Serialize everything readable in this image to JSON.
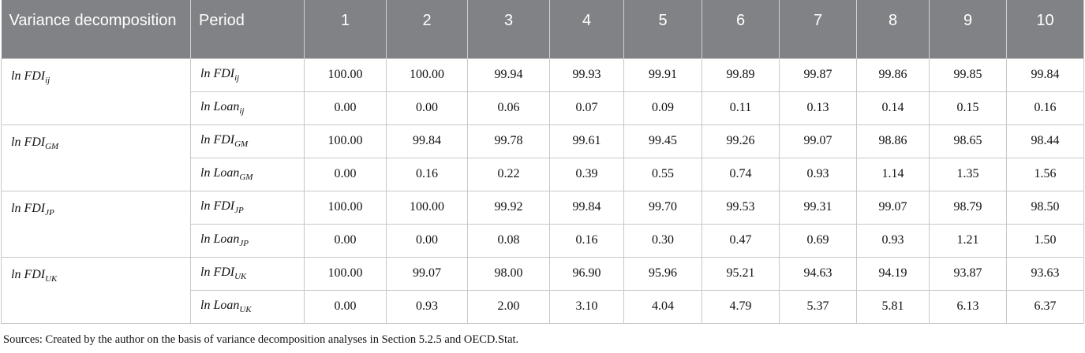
{
  "table": {
    "header": [
      "Variance decomposition",
      "Period",
      "1",
      "2",
      "3",
      "4",
      "5",
      "6",
      "7",
      "8",
      "9",
      "10"
    ],
    "groups": [
      {
        "label": {
          "base": "ln FDI",
          "sub": "ij"
        },
        "rows": [
          {
            "label": {
              "base": "ln FDI",
              "sub": "ij"
            },
            "values": [
              "100.00",
              "100.00",
              "99.94",
              "99.93",
              "99.91",
              "99.89",
              "99.87",
              "99.86",
              "99.85",
              "99.84"
            ]
          },
          {
            "label": {
              "base": "ln Loan",
              "sub": "ij"
            },
            "values": [
              "0.00",
              "0.00",
              "0.06",
              "0.07",
              "0.09",
              "0.11",
              "0.13",
              "0.14",
              "0.15",
              "0.16"
            ]
          }
        ]
      },
      {
        "label": {
          "base": "ln FDI",
          "sub": "GM"
        },
        "rows": [
          {
            "label": {
              "base": "ln FDI",
              "sub": "GM"
            },
            "values": [
              "100.00",
              "99.84",
              "99.78",
              "99.61",
              "99.45",
              "99.26",
              "99.07",
              "98.86",
              "98.65",
              "98.44"
            ]
          },
          {
            "label": {
              "base": "ln Loan",
              "sub": "GM"
            },
            "values": [
              "0.00",
              "0.16",
              "0.22",
              "0.39",
              "0.55",
              "0.74",
              "0.93",
              "1.14",
              "1.35",
              "1.56"
            ]
          }
        ]
      },
      {
        "label": {
          "base": "ln FDI",
          "sub": "JP"
        },
        "rows": [
          {
            "label": {
              "base": "ln FDI",
              "sub": "JP"
            },
            "values": [
              "100.00",
              "100.00",
              "99.92",
              "99.84",
              "99.70",
              "99.53",
              "99.31",
              "99.07",
              "98.79",
              "98.50"
            ]
          },
          {
            "label": {
              "base": "ln Loan",
              "sub": "JP"
            },
            "values": [
              "0.00",
              "0.00",
              "0.08",
              "0.16",
              "0.30",
              "0.47",
              "0.69",
              "0.93",
              "1.21",
              "1.50"
            ]
          }
        ]
      },
      {
        "label": {
          "base": "ln FDI",
          "sub": "UK"
        },
        "rows": [
          {
            "label": {
              "base": "ln FDI",
              "sub": "UK"
            },
            "values": [
              "100.00",
              "99.07",
              "98.00",
              "96.90",
              "95.96",
              "95.21",
              "94.63",
              "94.19",
              "93.87",
              "93.63"
            ]
          },
          {
            "label": {
              "base": "ln Loan",
              "sub": "UK"
            },
            "values": [
              "0.00",
              "0.93",
              "2.00",
              "3.10",
              "4.04",
              "4.79",
              "5.37",
              "5.81",
              "6.13",
              "6.37"
            ]
          }
        ]
      }
    ]
  },
  "source": "Sources: Created by the author on the basis of variance decomposition analyses in Section 5.2.5 and OECD.Stat."
}
